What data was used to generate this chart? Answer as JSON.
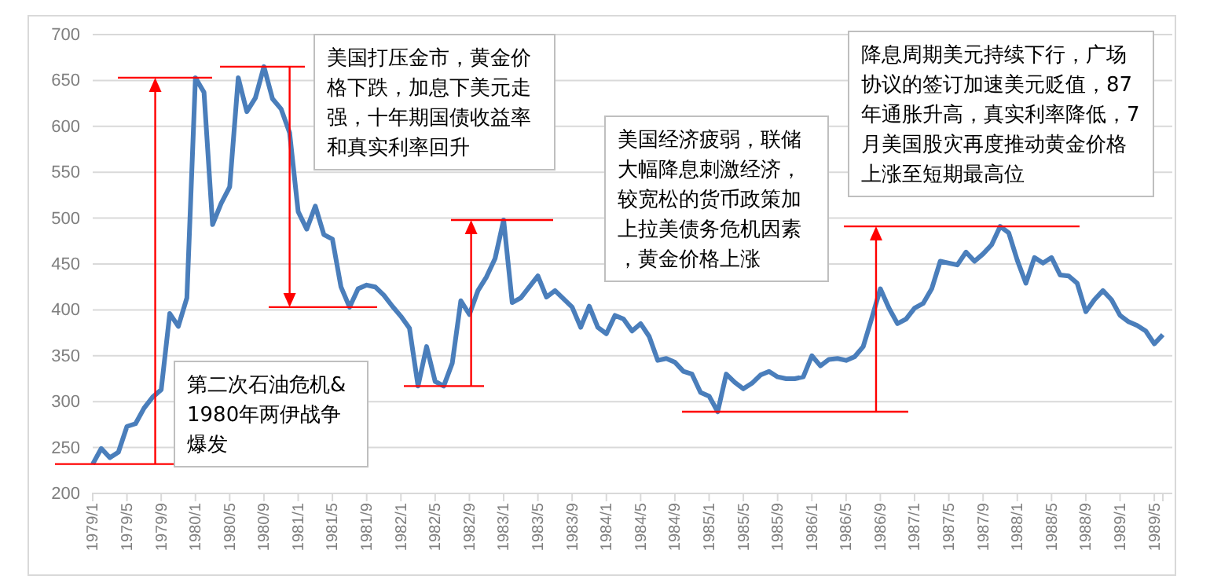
{
  "chart_data": {
    "type": "line",
    "categories": [
      "1979/1",
      null,
      null,
      null,
      "1979/5",
      null,
      null,
      null,
      "1979/9",
      null,
      null,
      null,
      "1980/1",
      null,
      null,
      null,
      "1980/5",
      null,
      null,
      null,
      "1980/9",
      null,
      null,
      null,
      "1981/1",
      null,
      null,
      null,
      "1981/5",
      null,
      null,
      null,
      "1981/9",
      null,
      null,
      null,
      "1982/1",
      null,
      null,
      null,
      "1982/5",
      null,
      null,
      null,
      "1982/9",
      null,
      null,
      null,
      "1983/1",
      null,
      null,
      null,
      "1983/5",
      null,
      null,
      null,
      "1983/9",
      null,
      null,
      null,
      "1984/1",
      null,
      null,
      null,
      "1984/5",
      null,
      null,
      null,
      "1984/9",
      null,
      null,
      null,
      "1985/1",
      null,
      null,
      null,
      "1985/5",
      null,
      null,
      null,
      "1985/9",
      null,
      null,
      null,
      "1986/1",
      null,
      null,
      null,
      "1986/5",
      null,
      null,
      null,
      "1986/9",
      null,
      null,
      null,
      "1987/1",
      null,
      null,
      null,
      "1987/5",
      null,
      null,
      null,
      "1987/9",
      null,
      null,
      null,
      "1988/1",
      null,
      null,
      null,
      "1988/5",
      null,
      null,
      null,
      "1988/9",
      null,
      null,
      null,
      "1989/1",
      null,
      null,
      null,
      "1989/5",
      null
    ],
    "series": [
      {
        "color": "#4a7ebb",
        "values": [
          232,
          249,
          239,
          245,
          273,
          276,
          293,
          305,
          313,
          396,
          382,
          413,
          653,
          637,
          493,
          516,
          534,
          653,
          616,
          631,
          665,
          630,
          619,
          593,
          507,
          488,
          513,
          482,
          477,
          425,
          403,
          423,
          427,
          425,
          416,
          404,
          393,
          380,
          317,
          360,
          322,
          317,
          342,
          410,
          395,
          421,
          436,
          456,
          498,
          408,
          413,
          425,
          437,
          414,
          421,
          412,
          403,
          381,
          404,
          381,
          374,
          394,
          390,
          377,
          385,
          371,
          345,
          347,
          343,
          333,
          330,
          310,
          306,
          289,
          330,
          321,
          314,
          320,
          329,
          333,
          327,
          325,
          325,
          327,
          350,
          339,
          346,
          347,
          345,
          349,
          360,
          391,
          423,
          402,
          385,
          390,
          402,
          407,
          423,
          453,
          451,
          449,
          463,
          453,
          461,
          471,
          491,
          484,
          454,
          429,
          457,
          451,
          457,
          438,
          437,
          429,
          398,
          411,
          421,
          411,
          394,
          387,
          383,
          377,
          363,
          373
        ]
      }
    ],
    "ylim": [
      200,
      700
    ],
    "yticks": [
      200,
      250,
      300,
      350,
      400,
      450,
      500,
      550,
      600,
      650,
      700
    ],
    "grid": "y",
    "marker": "none",
    "line_style": "solid",
    "annotations": [
      "第二次石油危机& 1980年两伊战争爆发",
      "美国打压金市，黄金价格下跌，加息下美元走强，十年期国债收益率和真实利率回升",
      "美国经济疲弱，联储大幅降息刺激经济，较宽松的货币政策加上拉美债务危机因素，黄金价格上涨",
      "降息周期美元持续下行，广场协议的签订加速美元贬值，87年通胀升高，真实利率降低，7月美国股灾再度推动黄金价格上涨至短期最高位"
    ]
  }
}
